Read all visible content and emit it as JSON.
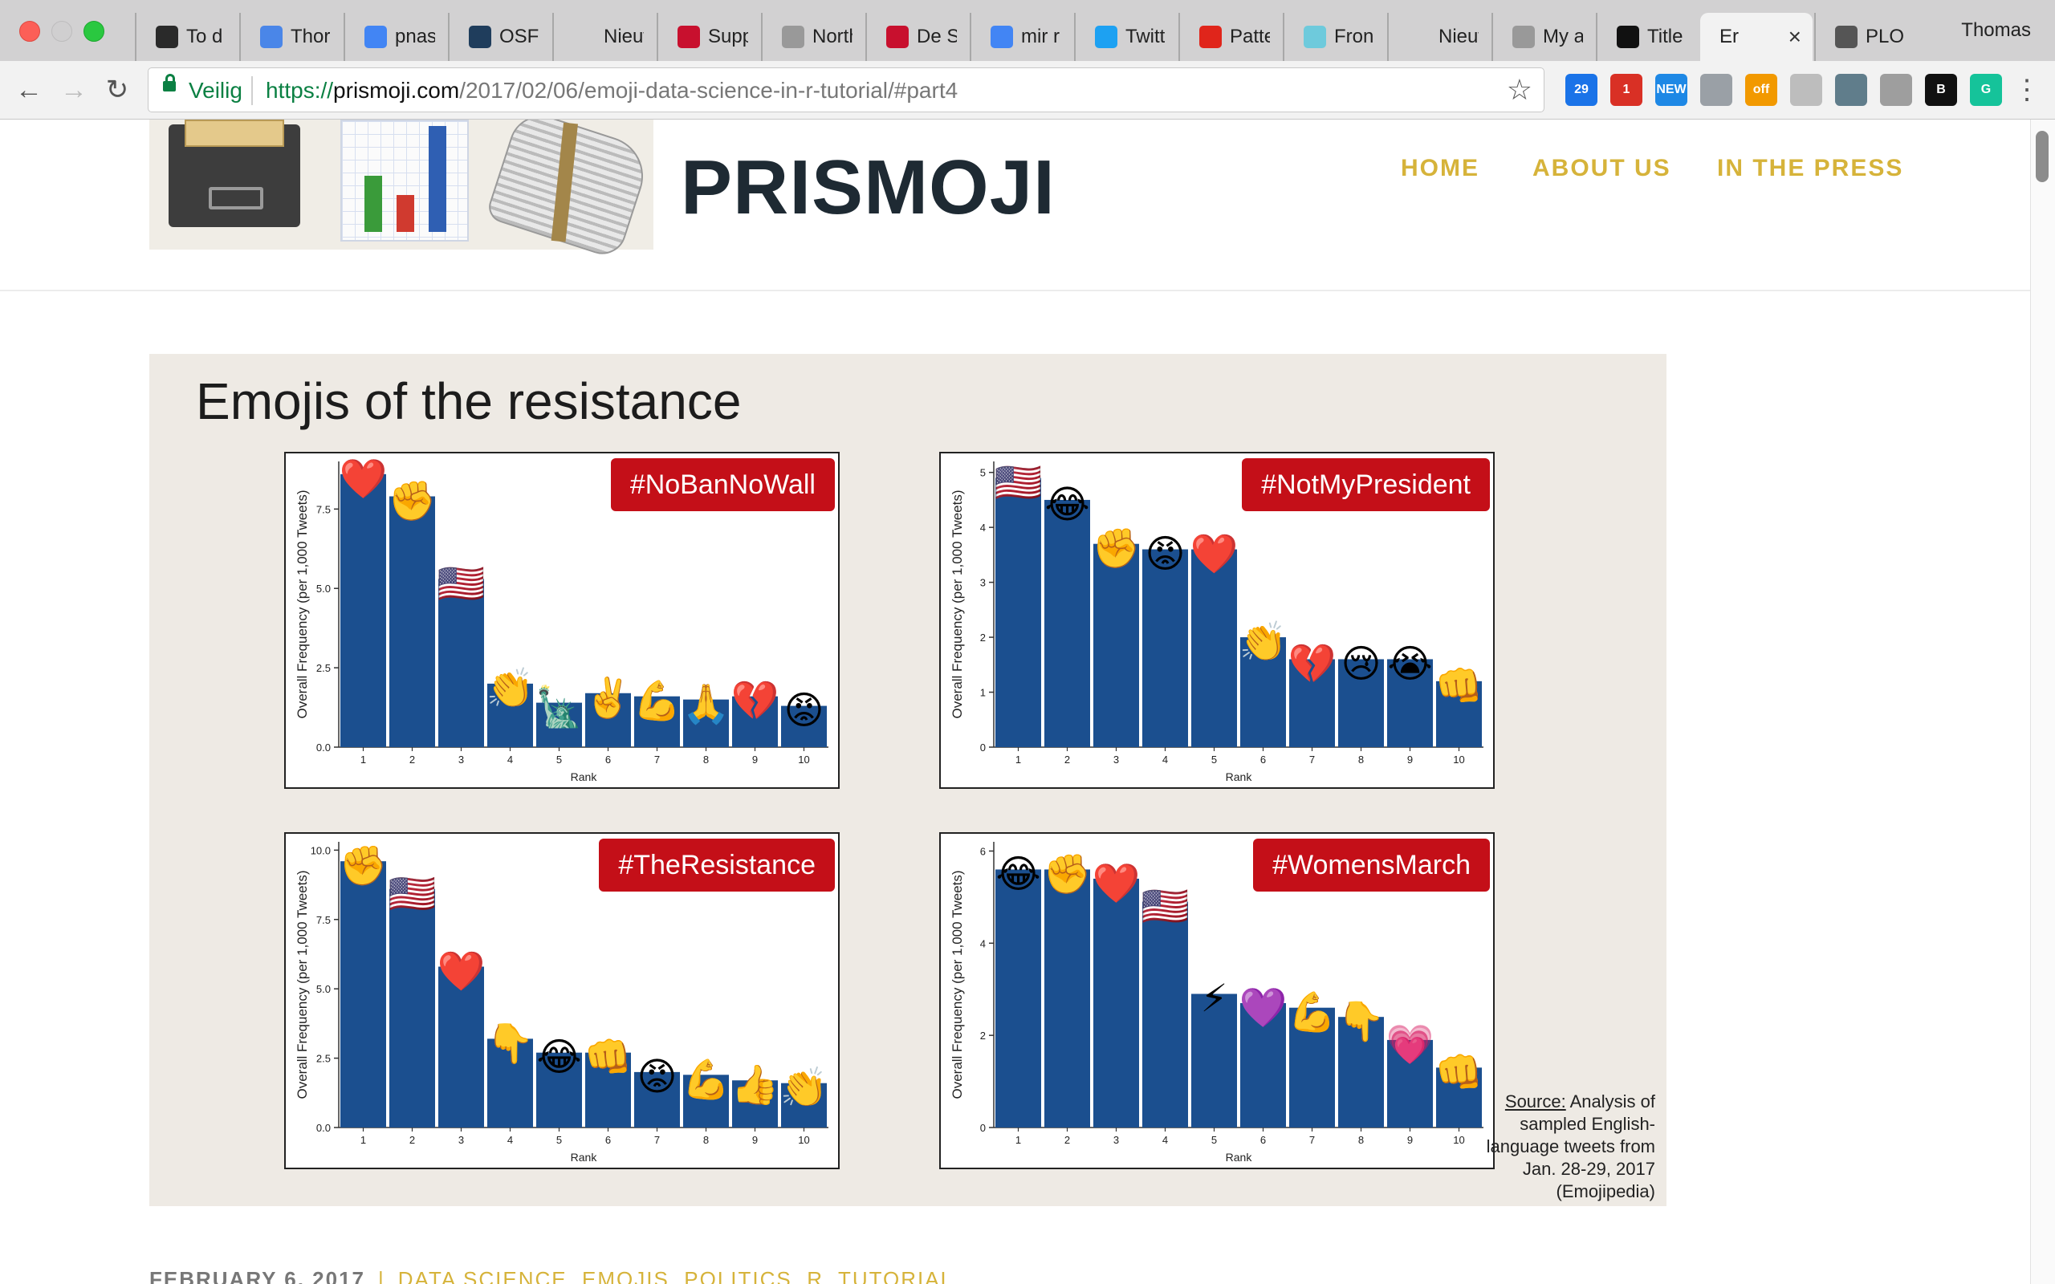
{
  "browser": {
    "tabs": [
      {
        "title": "To d",
        "icon": "trello-icon",
        "color": "#2a2a2a"
      },
      {
        "title": "Thor",
        "icon": "goodreads-icon",
        "color": "#4a86e8"
      },
      {
        "title": "pnas",
        "icon": "google-icon",
        "color": "#4285f4"
      },
      {
        "title": "OSF",
        "icon": "osf-icon",
        "color": "#1f3d5c"
      },
      {
        "title": "Nieuw ta",
        "icon": "blank-tab-icon",
        "color": "#d2d1d2"
      },
      {
        "title": "Supp",
        "icon": "ds-icon",
        "color": "#c8102e"
      },
      {
        "title": "North",
        "icon": "document-icon",
        "color": "#999999"
      },
      {
        "title": "De S",
        "icon": "ds-icon",
        "color": "#c8102e"
      },
      {
        "title": "mir r",
        "icon": "google-icon",
        "color": "#4285f4"
      },
      {
        "title": "Twitt",
        "icon": "twitter-icon",
        "color": "#1da1f2"
      },
      {
        "title": "Patte",
        "icon": "patreon-icon",
        "color": "#e0251b"
      },
      {
        "title": "Fron",
        "icon": "slack-icon",
        "color": "#6ecadc"
      },
      {
        "title": "Nieuw ta",
        "icon": "blank-tab-icon",
        "color": "#d2d1d2"
      },
      {
        "title": "My a",
        "icon": "document-icon",
        "color": "#999999"
      },
      {
        "title": "Title",
        "icon": "github-icon",
        "color": "#111111"
      },
      {
        "title": "Er",
        "icon": "blank-tab-icon",
        "color": "#f2f2f2"
      },
      {
        "title": "PLOS",
        "icon": "gear-icon",
        "color": "#555555"
      }
    ],
    "active_tab": 15,
    "profile_name": "Thomas",
    "secure_label": "Veilig",
    "url_scheme": "https://",
    "url_host": "prismoji.com",
    "url_path": "/2017/02/06/emoji-data-science-in-r-tutorial/#part4",
    "extensions": [
      {
        "icon": "calendar-icon",
        "badge": "29",
        "color": "#1a73e8"
      },
      {
        "icon": "gmail-checker-icon",
        "badge": "1",
        "color": "#d93025"
      },
      {
        "icon": "new-extension-icon",
        "badge": "NEW",
        "color": "#1e88e5"
      },
      {
        "icon": "globe-icon",
        "badge": "",
        "color": "#9aa0a6"
      },
      {
        "icon": "coupon-icon",
        "badge": "off",
        "color": "#f29900"
      },
      {
        "icon": "page-icon",
        "badge": "",
        "color": "#bdbdbd"
      },
      {
        "icon": "satellite-icon",
        "badge": "",
        "color": "#607d8b"
      },
      {
        "icon": "drive-icon",
        "badge": "",
        "color": "#9e9e9e"
      },
      {
        "icon": "b-icon",
        "badge": "B",
        "color": "#111111"
      },
      {
        "icon": "grammarly-icon",
        "badge": "G",
        "color": "#15c39a"
      }
    ]
  },
  "site": {
    "title": "PRISMOJI",
    "nav": [
      "HOME",
      "ABOUT US",
      "IN THE PRESS"
    ],
    "accent_color": "#d6b33a"
  },
  "figure": {
    "title": "Emojis of the resistance",
    "source_label": "Source:",
    "source_text": " Analysis of sampled English-language tweets from Jan. 28-29, 2017 (Emojipedia)",
    "bar_color": "#1b4f8f",
    "tag_color": "#c40f18"
  },
  "chart_data": [
    {
      "type": "bar",
      "title": "#NoBanNoWall",
      "xlabel": "Rank",
      "ylabel": "Overall Frequency (per 1,000 Tweets)",
      "categories": [
        "1",
        "2",
        "3",
        "4",
        "5",
        "6",
        "7",
        "8",
        "9",
        "10"
      ],
      "values": [
        8.6,
        7.9,
        5.3,
        2.0,
        1.4,
        1.7,
        1.6,
        1.5,
        1.6,
        1.3
      ],
      "emojis": [
        "❤️",
        "✊",
        "🇺🇸",
        "👏",
        "🗽",
        "✌️",
        "💪",
        "🙏",
        "💔",
        "😡"
      ],
      "ylim": [
        0,
        9.0
      ],
      "yticks": [
        0.0,
        2.5,
        5.0,
        7.5
      ],
      "ytick_labels": [
        "0.0",
        "2.5",
        "5.0",
        "7.5"
      ]
    },
    {
      "type": "bar",
      "title": "#NotMyPresident",
      "xlabel": "Rank",
      "ylabel": "Overall Frequency (per 1,000 Tweets)",
      "categories": [
        "1",
        "2",
        "3",
        "4",
        "5",
        "6",
        "7",
        "8",
        "9",
        "10"
      ],
      "values": [
        4.9,
        4.5,
        3.7,
        3.6,
        3.6,
        2.0,
        1.6,
        1.6,
        1.6,
        1.2
      ],
      "emojis": [
        "🇺🇸",
        "😂",
        "✊",
        "😡",
        "❤️",
        "👏",
        "💔",
        "😢",
        "😭",
        "👊"
      ],
      "ylim": [
        0,
        5.2
      ],
      "yticks": [
        0,
        1,
        2,
        3,
        4,
        5
      ],
      "ytick_labels": [
        "0",
        "1",
        "2",
        "3",
        "4",
        "5"
      ]
    },
    {
      "type": "bar",
      "title": "#TheResistance",
      "xlabel": "Rank",
      "ylabel": "Overall Frequency (per 1,000 Tweets)",
      "categories": [
        "1",
        "2",
        "3",
        "4",
        "5",
        "6",
        "7",
        "8",
        "9",
        "10"
      ],
      "values": [
        9.6,
        8.6,
        5.8,
        3.2,
        2.7,
        2.7,
        2.0,
        1.9,
        1.7,
        1.6
      ],
      "emojis": [
        "✊",
        "🇺🇸",
        "❤️",
        "👇",
        "😂",
        "👊",
        "😡",
        "💪",
        "👍",
        "👏"
      ],
      "ylim": [
        0,
        10.3
      ],
      "yticks": [
        0.0,
        2.5,
        5.0,
        7.5,
        10.0
      ],
      "ytick_labels": [
        "0.0",
        "2.5",
        "5.0",
        "7.5",
        "10.0"
      ]
    },
    {
      "type": "bar",
      "title": "#WomensMarch",
      "xlabel": "Rank",
      "ylabel": "Overall Frequency (per 1,000 Tweets)",
      "categories": [
        "1",
        "2",
        "3",
        "4",
        "5",
        "6",
        "7",
        "8",
        "9",
        "10"
      ],
      "values": [
        5.6,
        5.6,
        5.4,
        4.9,
        2.9,
        2.7,
        2.6,
        2.4,
        1.9,
        1.3
      ],
      "emojis": [
        "😂",
        "✊",
        "❤️",
        "🇺🇸",
        "⚡",
        "💜",
        "💪",
        "👇",
        "💗",
        "👊"
      ],
      "ylim": [
        0,
        6.2
      ],
      "yticks": [
        0,
        2,
        4,
        6
      ],
      "ytick_labels": [
        "0",
        "2",
        "4",
        "6"
      ]
    }
  ],
  "post_meta": {
    "date": "FEBRUARY 6, 2017",
    "separator": "|",
    "categories": "DATA SCIENCE, EMOJIS, POLITICS, R, TUTORIAL"
  }
}
